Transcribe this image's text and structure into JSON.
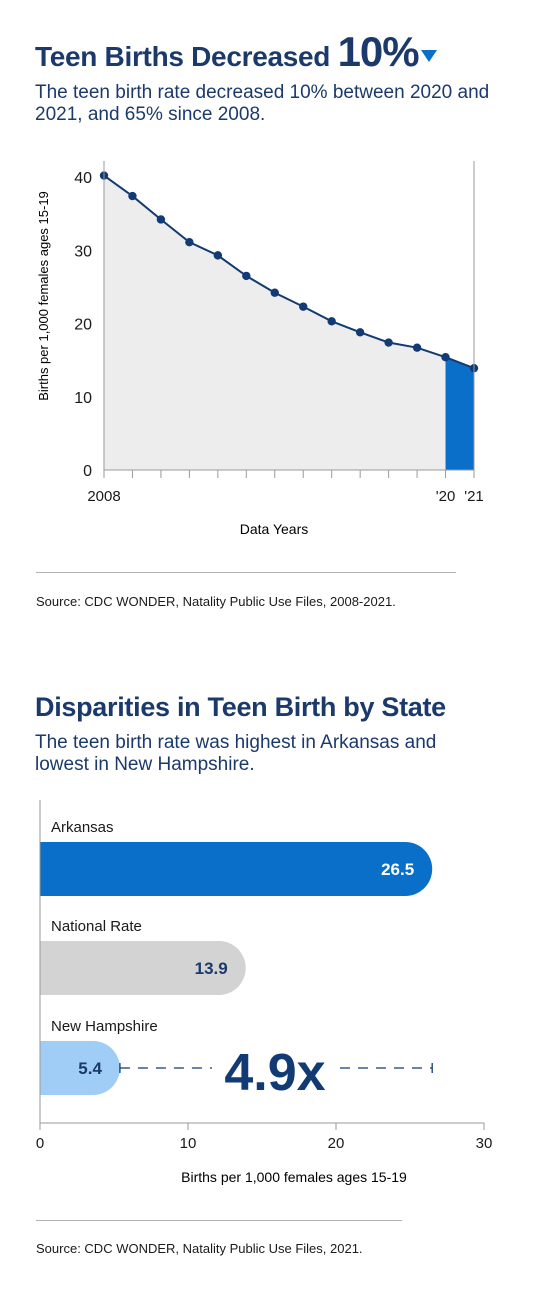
{
  "section1": {
    "title_text": "Teen Births Decreased",
    "title_value": "10%",
    "subtitle": "The teen birth rate decreased 10% between 2020 and 2021, and 65% since 2008.",
    "source": "Source: CDC WONDER, Natality Public Use Files, 2008-2021."
  },
  "section2": {
    "title": "Disparities in Teen Birth by State",
    "subtitle": "The teen birth rate was highest in Arkansas and lowest in New Hampshire.",
    "ratio_label": "4.9x",
    "source": "Source: CDC WONDER, Natality Public Use Files, 2021."
  },
  "chart_data": [
    {
      "type": "area",
      "xlabel": "Data Years",
      "ylabel": "Births per 1,000 females ages 15-19",
      "x": [
        2008,
        2009,
        2010,
        2011,
        2012,
        2013,
        2014,
        2015,
        2016,
        2017,
        2018,
        2019,
        2020,
        2021
      ],
      "values": [
        40.2,
        37.4,
        34.2,
        31.1,
        29.3,
        26.5,
        24.2,
        22.3,
        20.3,
        18.8,
        17.4,
        16.7,
        15.4,
        13.9
      ],
      "highlight_range": [
        2020,
        2021
      ],
      "ylim": [
        0,
        40
      ],
      "yticks": [
        0,
        10,
        20,
        30,
        40
      ],
      "xtick_labels": [
        {
          "x": 2008,
          "label": "2008"
        },
        {
          "x": 2020,
          "label": "'20"
        },
        {
          "x": 2021,
          "label": "'21"
        }
      ],
      "colors": {
        "line": "#123a73",
        "fill": "#ededed",
        "highlight": "#0a6fc9"
      }
    },
    {
      "type": "bar",
      "orientation": "horizontal",
      "categories": [
        "Arkansas",
        "National Rate",
        "New Hampshire"
      ],
      "values": [
        26.5,
        13.9,
        5.4
      ],
      "value_labels": [
        "26.5",
        "13.9",
        "5.4"
      ],
      "xlabel": "Births per 1,000 females ages 15-19",
      "xlim": [
        0,
        30
      ],
      "xticks": [
        0,
        10,
        20,
        30
      ],
      "colors": [
        "#0a6fc9",
        "#d3d3d3",
        "#9fcdf5"
      ],
      "label_colors": [
        "#ffffff",
        "#1b3a6b",
        "#1b3a6b"
      ]
    }
  ]
}
